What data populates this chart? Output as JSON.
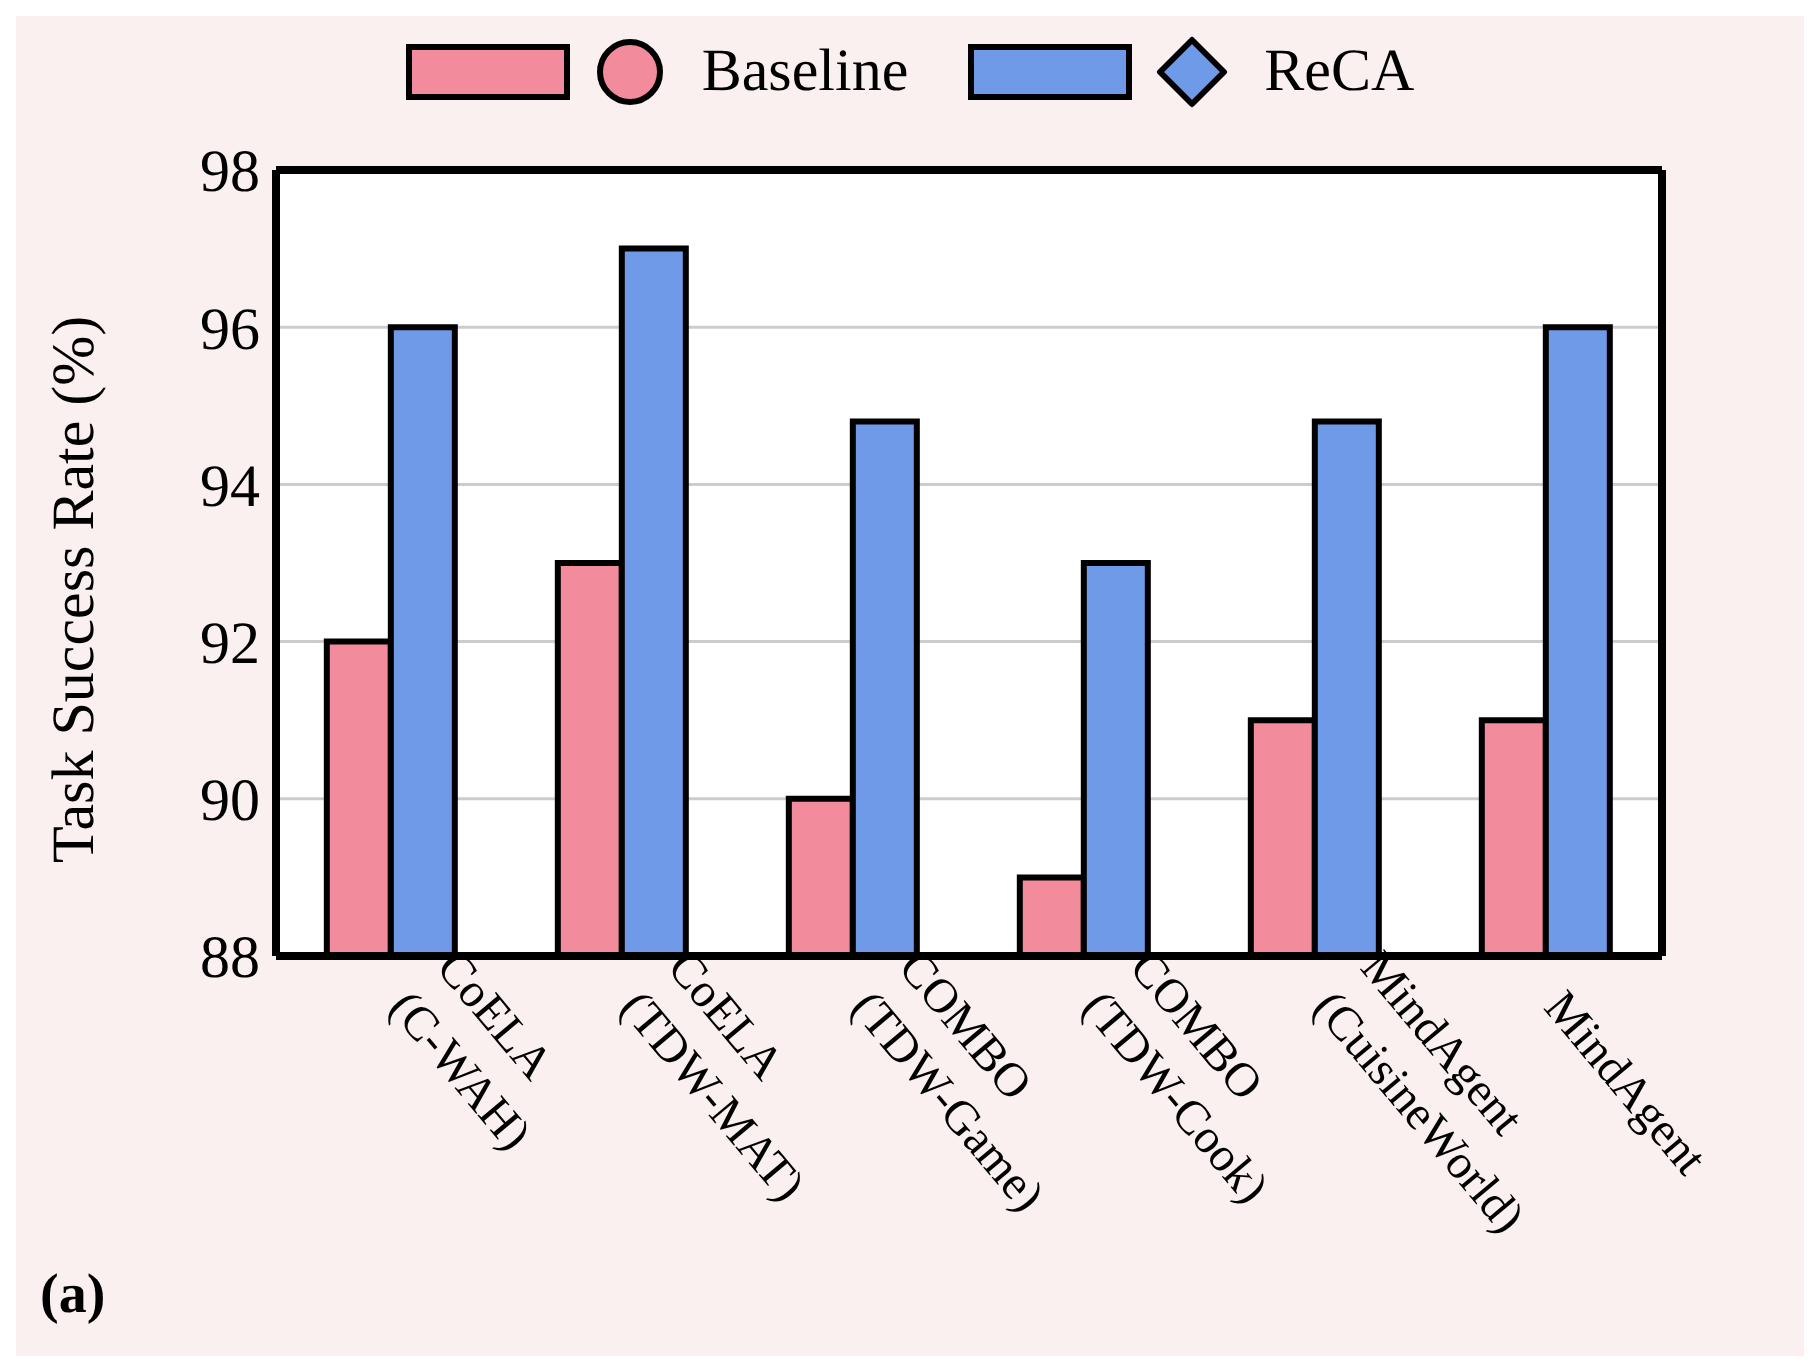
{
  "chart_data": {
    "type": "bar",
    "ylabel": "Task Success Rate (%)",
    "categories": [
      "CoELA\n(C-WAH)",
      "CoELA\n(TDW-MAT)",
      "COMBO\n(TDW-Game)",
      "COMBO\n(TDW-Cook)",
      "MindAgent\n(CuisineWorld)",
      "MindAgent"
    ],
    "series": [
      {
        "name": "Baseline",
        "color": "#f28b9b",
        "values": [
          92,
          93,
          90,
          89,
          91,
          91
        ]
      },
      {
        "name": "ReCA",
        "color": "#6f9ae8",
        "values": [
          96,
          97,
          94.8,
          93,
          94.8,
          96
        ]
      }
    ],
    "ylim": [
      88,
      98
    ],
    "yticks": [
      88,
      90,
      92,
      94,
      96,
      98
    ],
    "grid": "y",
    "legend": "top",
    "annotations": [
      "(a)"
    ]
  }
}
